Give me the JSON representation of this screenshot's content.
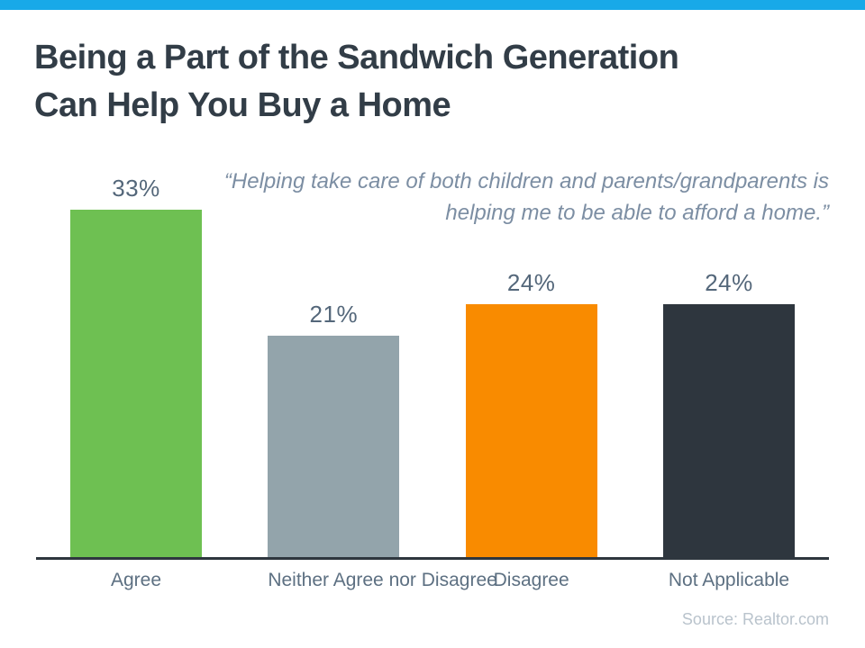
{
  "page": {
    "background": "#ffffff",
    "top_strip_color": "#18A9E8"
  },
  "title": {
    "line1": "Being a Part of the Sandwich Generation",
    "line2": "Can Help You Buy a Home",
    "color": "#323D47"
  },
  "quote": {
    "line1": "“Helping take care of both children and parents/grandparents is",
    "line2": "helping me to be able to afford a home.”",
    "color": "#7C8EA3"
  },
  "source": {
    "text": "Source: Realtor.com",
    "color": "#B9C3CC"
  },
  "chart_data": {
    "type": "bar",
    "title": "Being a Part of the Sandwich Generation Can Help You Buy a Home",
    "categories": [
      "Agree",
      "Neither Agree nor Disagree",
      "Disagree",
      "Not Applicable"
    ],
    "values": [
      33,
      21,
      24,
      24
    ],
    "value_labels": [
      "33%",
      "21%",
      "24%",
      "24%"
    ],
    "bar_colors": [
      "#6EC052",
      "#93A4AB",
      "#F98B00",
      "#2E363E"
    ],
    "xlabel": "",
    "ylabel": "",
    "ylim": [
      0,
      35
    ],
    "grid": false,
    "legend": false,
    "axis_line_color": "#2E363E",
    "category_label_color": "#5D7082",
    "value_label_color": "#54677A"
  }
}
